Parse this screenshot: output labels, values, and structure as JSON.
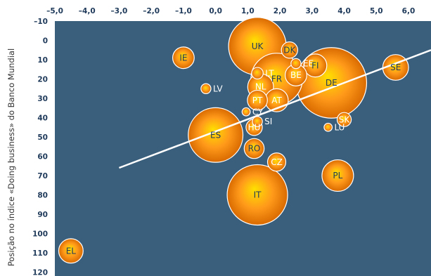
{
  "chart_data": {
    "type": "scatter",
    "subtype": "bubble",
    "ylabel": "Posição no índice «Doing business» do Banco Mundial",
    "xlabel": "",
    "xlim": [
      -5.0,
      6.7
    ],
    "ylim": [
      -10,
      122
    ],
    "y_reversed": true,
    "x_ticks": [
      "–5,0",
      "–4,0",
      "–3,0",
      "–2,0",
      "–1,0",
      "0,0",
      "1,0",
      "2,0",
      "3,0",
      "4,0",
      "5,0",
      "6,0"
    ],
    "x_tick_values": [
      -5,
      -4,
      -3,
      -2,
      -1,
      0,
      1,
      2,
      3,
      4,
      5,
      6
    ],
    "y_ticks": [
      "–10",
      "0",
      "10",
      "20",
      "30",
      "40",
      "50",
      "60",
      "70",
      "80",
      "90",
      "100",
      "110",
      "120"
    ],
    "y_tick_values": [
      -10,
      0,
      10,
      20,
      30,
      40,
      50,
      60,
      70,
      80,
      90,
      100,
      110,
      120
    ],
    "grid": false,
    "colors": {
      "plot_bg": "#3a5f7c",
      "bubble_inner": "#ffe000",
      "bubble_mid": "#ff9a1a",
      "bubble_outer": "#d96a00",
      "trend": "#ffffff",
      "text_dark": "#1f3a5a",
      "text_light": "#ffffff"
    },
    "trendline": {
      "x": [
        -3.0,
        6.7
      ],
      "y": [
        66,
        5
      ]
    },
    "series": [
      {
        "points": [
          {
            "label": "UK",
            "x": 1.3,
            "y": 3,
            "size": 100,
            "label_color": "dark"
          },
          {
            "label": "DK",
            "x": 2.3,
            "y": 5,
            "size": 8,
            "label_color": "dark"
          },
          {
            "label": "IE",
            "x": -1.0,
            "y": 9,
            "size": 14,
            "label_color": "dark"
          },
          {
            "label": "EE",
            "x": 2.5,
            "y": 12,
            "size": 3,
            "label_color": "light"
          },
          {
            "label": "FI",
            "x": 3.1,
            "y": 13,
            "size": 16,
            "label_color": "dark"
          },
          {
            "label": "LT",
            "x": 1.3,
            "y": 17,
            "size": 4,
            "label_color": "light"
          },
          {
            "label": "BE",
            "x": 2.5,
            "y": 18,
            "size": 14,
            "label_color": "light"
          },
          {
            "label": "FR",
            "x": 1.9,
            "y": 20,
            "size": 80,
            "label_color": "dark"
          },
          {
            "label": "DE",
            "x": 3.6,
            "y": 22,
            "size": 150,
            "label_color": "dark"
          },
          {
            "label": "SE",
            "x": 5.6,
            "y": 14,
            "size": 20,
            "label_color": "dark"
          },
          {
            "label": "NL",
            "x": 1.4,
            "y": 24,
            "size": 20,
            "label_color": "light"
          },
          {
            "label": "LV",
            "x": -0.3,
            "y": 25,
            "size": 3,
            "label_color": "light"
          },
          {
            "label": "PT",
            "x": 1.3,
            "y": 31,
            "size": 12,
            "label_color": "light"
          },
          {
            "label": "AT",
            "x": 1.9,
            "y": 31,
            "size": 16,
            "label_color": "light"
          },
          {
            "label": "CY",
            "x": 0.95,
            "y": 37,
            "size": 2,
            "label_color": "light"
          },
          {
            "label": "SI",
            "x": 1.3,
            "y": 42,
            "size": 3,
            "label_color": "light"
          },
          {
            "label": "SK",
            "x": 4.0,
            "y": 41,
            "size": 6,
            "label_color": "light"
          },
          {
            "label": "HU",
            "x": 1.2,
            "y": 45,
            "size": 8,
            "label_color": "light"
          },
          {
            "label": "LU",
            "x": 3.5,
            "y": 45,
            "size": 2,
            "label_color": "light"
          },
          {
            "label": "ES",
            "x": 0.0,
            "y": 49,
            "size": 90,
            "label_color": "dark"
          },
          {
            "label": "RO",
            "x": 1.2,
            "y": 56,
            "size": 12,
            "label_color": "dark"
          },
          {
            "label": "CZ",
            "x": 1.9,
            "y": 63,
            "size": 10,
            "label_color": "light"
          },
          {
            "label": "PL",
            "x": 3.8,
            "y": 70,
            "size": 30,
            "label_color": "dark"
          },
          {
            "label": "IT",
            "x": 1.3,
            "y": 80,
            "size": 110,
            "label_color": "dark"
          },
          {
            "label": "EL",
            "x": -4.5,
            "y": 109,
            "size": 18,
            "label_color": "dark"
          }
        ]
      }
    ]
  }
}
